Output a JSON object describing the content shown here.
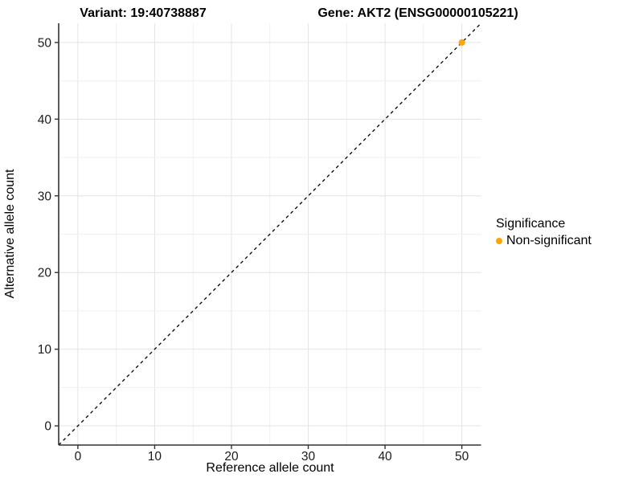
{
  "titles": {
    "variant": "Variant: 19:40738887",
    "gene": "Gene: AKT2 (ENSG00000105221)"
  },
  "chart_data": {
    "type": "scatter",
    "title_left": "Variant: 19:40738887",
    "title_right": "Gene: AKT2 (ENSG00000105221)",
    "xlabel": "Reference allele count",
    "ylabel": "Alternative allele count",
    "xlim": [
      -2.5,
      52.5
    ],
    "ylim": [
      -2.5,
      52.5
    ],
    "xticks": [
      0,
      10,
      20,
      30,
      40,
      50
    ],
    "yticks": [
      0,
      10,
      20,
      30,
      40,
      50
    ],
    "minor_grid_step": 5,
    "grid": true,
    "reference_line": {
      "type": "identity",
      "equation": "y = x",
      "style": "dashed",
      "color": "#000000"
    },
    "series": [
      {
        "name": "Non-significant",
        "color": "#FFA500",
        "points": [
          {
            "x": 50,
            "y": 50
          }
        ]
      }
    ],
    "legend": {
      "title": "Significance",
      "position": "right",
      "items": [
        {
          "label": "Non-significant",
          "color": "#FFA500"
        }
      ]
    }
  },
  "colors": {
    "background": "#ffffff",
    "grid_major": "#e3e3e3",
    "grid_minor": "#efefef",
    "axis_line": "#333333",
    "tick_mark": "#333333",
    "tick_label": "#1a1a1a",
    "point": "#FFA500"
  }
}
